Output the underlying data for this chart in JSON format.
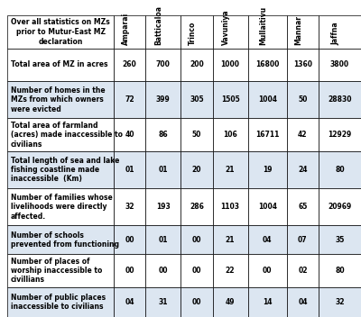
{
  "title": "Over all statistics on MZs\nprior to Mutur-East MZ\ndeclaration",
  "columns": [
    "Amparai",
    "Batticaloa",
    "Trinco",
    "Vavuniya",
    "Mullaitivu",
    "Mannar",
    "Jaffna"
  ],
  "rows": [
    {
      "label": "Total area of MZ in acres",
      "values": [
        "260",
        "700",
        "200",
        "1000",
        "16800",
        "1360",
        "3800"
      ]
    },
    {
      "label": "Number of homes in the\nMZs from which owners\nwere evicted",
      "values": [
        "72",
        "399",
        "305",
        "1505",
        "1004",
        "50",
        "28830"
      ]
    },
    {
      "label": "Total area of farmland\n(acres) made inaccessible to\ncivilians",
      "values": [
        "40",
        "86",
        "50",
        "106",
        "16711",
        "42",
        "12929"
      ]
    },
    {
      "label": "Total length of sea and lake\nfishing coastline made\ninaccessible  (Km)",
      "values": [
        "01",
        "01",
        "20",
        "21",
        "19",
        "24",
        "80"
      ]
    },
    {
      "label": "Number of families whose\nlivelihoods were directly\naffected.",
      "values": [
        "32",
        "193",
        "286",
        "1103",
        "1004",
        "65",
        "20969"
      ]
    },
    {
      "label": "Number of schools\nprevented from functioning",
      "values": [
        "00",
        "01",
        "00",
        "21",
        "04",
        "07",
        "35"
      ]
    },
    {
      "label": "Number of places of\nworship inaccessible to\ncivillians",
      "values": [
        "00",
        "00",
        "00",
        "22",
        "00",
        "02",
        "80"
      ]
    },
    {
      "label": "Number of public places\ninaccessible to civilians",
      "values": [
        "04",
        "31",
        "00",
        "49",
        "14",
        "04",
        "32"
      ]
    }
  ],
  "bg_color": "#ffffff",
  "header_bg": "#ffffff",
  "cell_bg_even": "#dce6f1",
  "cell_bg_odd": "#ffffff",
  "border_color": "#000000",
  "text_color": "#000000",
  "font_size": 5.5,
  "header_font_size": 5.5
}
